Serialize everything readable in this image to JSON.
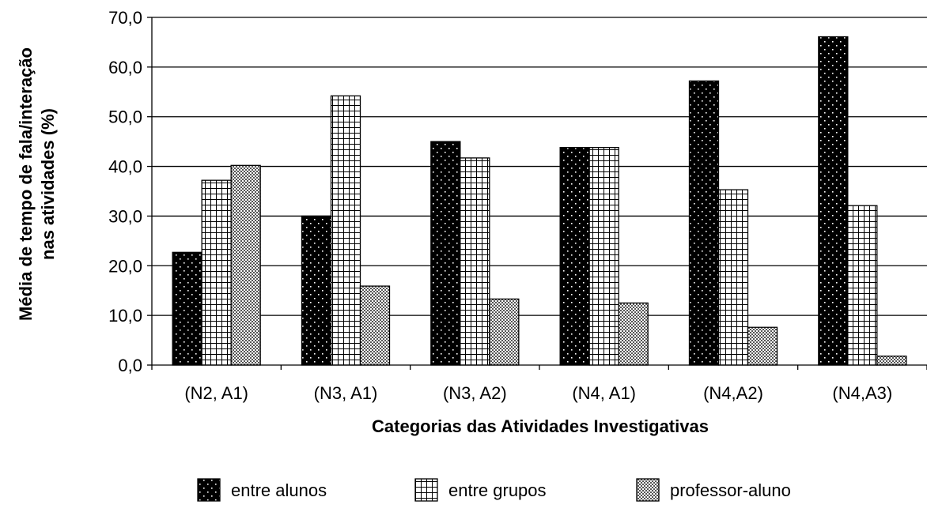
{
  "chart_data": {
    "type": "bar",
    "title": "",
    "xlabel": "Categorias das Atividades Investigativas",
    "ylabel": [
      "Média de tempo de fala/interação",
      "nas atividades (%)"
    ],
    "categories": [
      "(N2, A1)",
      "(N3, A1)",
      "(N3, A2)",
      "(N4, A1)",
      "(N4,A2)",
      "(N4,A3)"
    ],
    "series": [
      {
        "name": "entre alunos",
        "values": [
          22.7,
          30.0,
          45.0,
          43.8,
          57.2,
          66.1
        ]
      },
      {
        "name": "entre grupos",
        "values": [
          37.2,
          54.2,
          41.7,
          43.8,
          35.3,
          32.1
        ]
      },
      {
        "name": "professor-aluno",
        "values": [
          40.2,
          15.9,
          13.3,
          12.5,
          7.6,
          1.8
        ]
      }
    ],
    "yticks": [
      "0,0",
      "10,0",
      "20,0",
      "30,0",
      "40,0",
      "50,0",
      "60,0",
      "70,0"
    ],
    "ylim": [
      0,
      70
    ],
    "grid": true,
    "legend_position": "bottom",
    "colors": {
      "bar_stroke": "#000000",
      "grid": "#000000",
      "background": "#ffffff"
    }
  }
}
